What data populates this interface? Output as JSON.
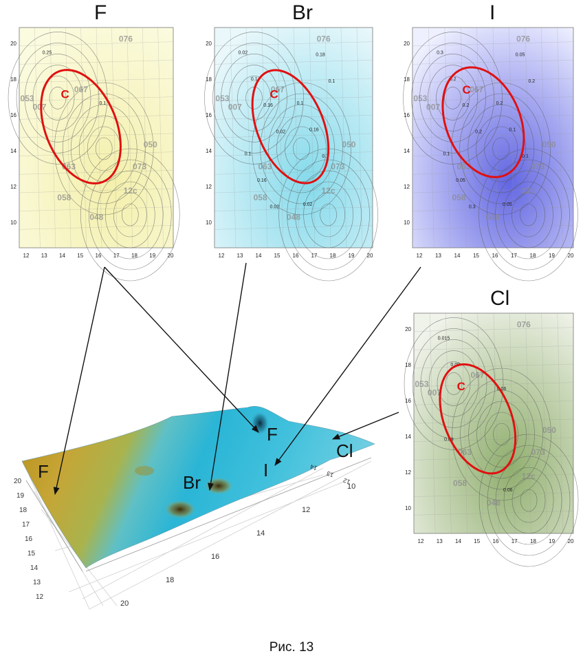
{
  "panels": [
    {
      "id": "F",
      "title": "F",
      "tint": "#f3efa8",
      "tint2": "#fbfbe0",
      "x_ticks": [
        "12",
        "13",
        "14",
        "15",
        "16",
        "17",
        "18",
        "19",
        "20"
      ],
      "y_ticks": [
        "20",
        "18",
        "16",
        "14",
        "12",
        "10"
      ],
      "zone_label": "C",
      "contour_labels": [
        "0.25",
        "0.1"
      ]
    },
    {
      "id": "Br",
      "title": "Br",
      "tint": "#7fd8ea",
      "tint2": "#eaf8fb",
      "x_ticks": [
        "12",
        "13",
        "14",
        "15",
        "16",
        "17",
        "18",
        "19",
        "20"
      ],
      "y_ticks": [
        "20",
        "18",
        "16",
        "14",
        "12",
        "10"
      ],
      "zone_label": "C",
      "contour_labels": [
        "0.02",
        "0.1",
        "0.1",
        "0.02",
        "0.1",
        "0.16",
        "0.16",
        "0.18",
        "0.16",
        "0.1",
        "0.02",
        "0.1",
        "0.02"
      ]
    },
    {
      "id": "I",
      "title": "I",
      "tint": "#5a5ee0",
      "tint2": "#eef0ff",
      "x_ticks": [
        "12",
        "13",
        "14",
        "15",
        "16",
        "17",
        "18",
        "19",
        "20"
      ],
      "y_ticks": [
        "20",
        "18",
        "16",
        "14",
        "12",
        "10"
      ],
      "zone_label": "C",
      "contour_labels": [
        "0.3",
        "0.2",
        "0.1",
        "0.05",
        "0.2",
        "0.1",
        "0.05",
        "0.05",
        "0.2",
        "0.1",
        "0.3",
        "0.2",
        "0.2"
      ]
    },
    {
      "id": "Cl",
      "title": "Cl",
      "tint": "#8aaa66",
      "tint2": "#f0f3ea",
      "x_ticks": [
        "12",
        "13",
        "14",
        "15",
        "16",
        "17",
        "18",
        "19",
        "20"
      ],
      "y_ticks": [
        "20",
        "18",
        "16",
        "14",
        "12",
        "10"
      ],
      "zone_label": "C",
      "contour_labels": [
        "0.015",
        "0.06",
        "0.09",
        "0.06",
        "0.09"
      ]
    }
  ],
  "map_labels": [
    "076",
    "067",
    "053",
    "007",
    "063",
    "058",
    "048",
    "050",
    "073",
    "12c"
  ],
  "surface": {
    "element_labels": [
      "F",
      "Br",
      "F",
      "I",
      "Cl"
    ],
    "axis_left": [
      "20",
      "19",
      "18",
      "17",
      "16",
      "15",
      "14",
      "13",
      "12"
    ],
    "axis_bottom": [
      "20",
      "18",
      "16",
      "14",
      "12",
      "10"
    ],
    "axis_right": [
      "14",
      "13",
      "12"
    ]
  },
  "caption": "Рис. 13",
  "colors": {
    "zone_outline": "#e01010",
    "arrow": "#111111"
  }
}
